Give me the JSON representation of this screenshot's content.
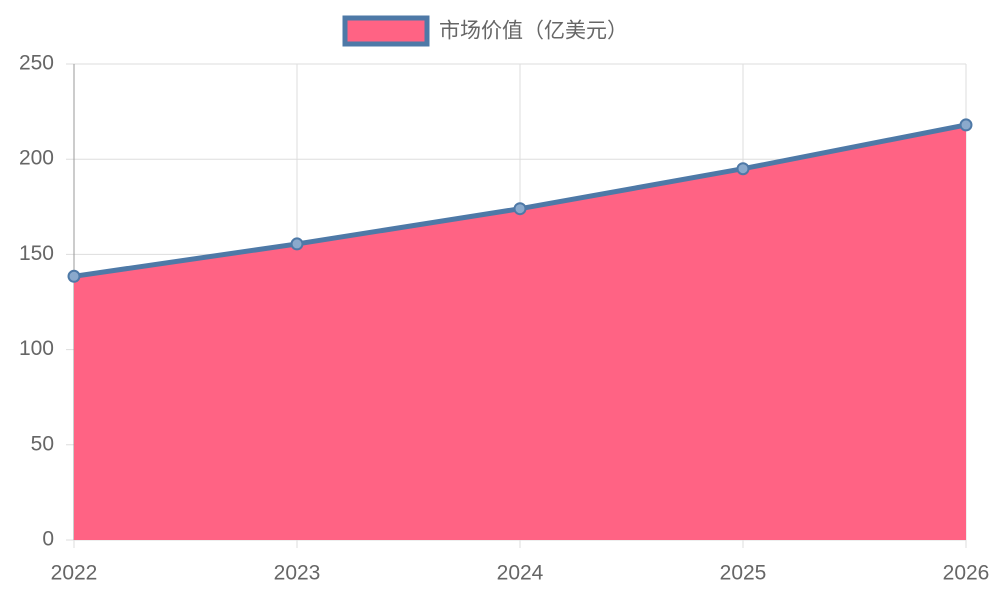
{
  "chart_data": {
    "type": "area",
    "categories": [
      "2022",
      "2023",
      "2024",
      "2025",
      "2026"
    ],
    "series": [
      {
        "name": "市场价值（亿美元）",
        "color": "#4e79a7",
        "fill_color": "#ff6384",
        "values": [
          138.5,
          155.5,
          174,
          195,
          218
        ]
      }
    ],
    "ylim": [
      0,
      250
    ],
    "yticks": [
      0,
      50,
      100,
      150,
      200,
      250
    ],
    "grid": true,
    "legend": "top"
  }
}
